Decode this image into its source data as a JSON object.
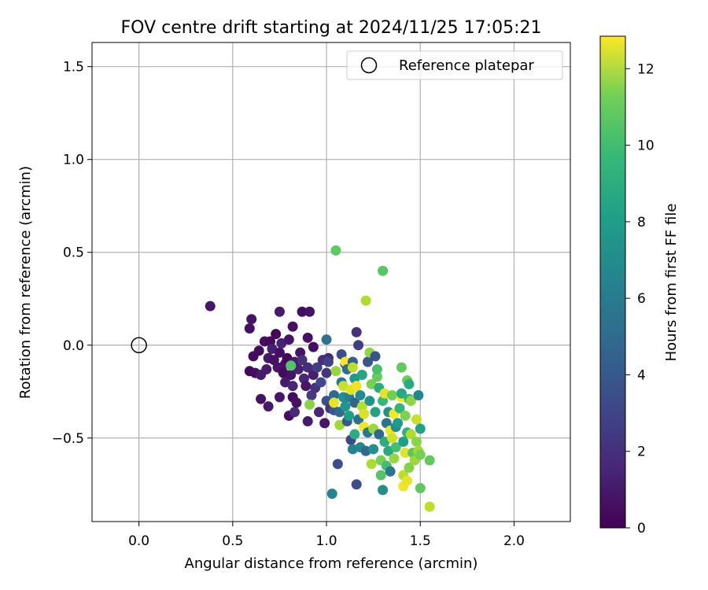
{
  "chart_data": {
    "type": "scatter",
    "title": "FOV centre drift starting at 2024/11/25 17:05:21",
    "xlabel": "Angular distance from reference (arcmin)",
    "ylabel": "Rotation from reference (arcmin)",
    "xlim": [
      -0.25,
      2.3
    ],
    "ylim": [
      -0.95,
      1.63
    ],
    "xticks": [
      0.0,
      0.5,
      1.0,
      1.5,
      2.0
    ],
    "xtick_labels": [
      "0.0",
      "0.5",
      "1.0",
      "1.5",
      "2.0"
    ],
    "yticks": [
      -0.5,
      0.0,
      0.5,
      1.0,
      1.5
    ],
    "ytick_labels": [
      "−0.5",
      "0.0",
      "0.5",
      "1.0",
      "1.5"
    ],
    "grid": true,
    "legend": {
      "position": "top-right",
      "entries": [
        {
          "label": "Reference platepar",
          "marker": "open-circle"
        }
      ]
    },
    "reference_point": {
      "x": 0.0,
      "y": 0.0
    },
    "colorbar": {
      "label": "Hours from first FF file",
      "range": [
        0,
        12.85
      ],
      "ticks": [
        0,
        2,
        4,
        6,
        8,
        10,
        12
      ],
      "tick_labels": [
        "0",
        "2",
        "4",
        "6",
        "8",
        "10",
        "12"
      ],
      "colormap": "viridis"
    },
    "points": [
      {
        "x": 0.38,
        "y": 0.21,
        "t": 0.8
      },
      {
        "x": 0.59,
        "y": 0.09,
        "t": 0.6
      },
      {
        "x": 0.6,
        "y": 0.14,
        "t": 0.7
      },
      {
        "x": 0.59,
        "y": -0.14,
        "t": 0.3
      },
      {
        "x": 0.61,
        "y": -0.06,
        "t": 0.4
      },
      {
        "x": 0.62,
        "y": -0.15,
        "t": 0.5
      },
      {
        "x": 0.64,
        "y": -0.03,
        "t": 0.4
      },
      {
        "x": 0.65,
        "y": -0.16,
        "t": 0.9
      },
      {
        "x": 0.65,
        "y": -0.29,
        "t": 0.6
      },
      {
        "x": 0.67,
        "y": 0.02,
        "t": 0.5
      },
      {
        "x": 0.68,
        "y": -0.13,
        "t": 1.0
      },
      {
        "x": 0.69,
        "y": -0.07,
        "t": 0.8
      },
      {
        "x": 0.69,
        "y": -0.33,
        "t": 0.9
      },
      {
        "x": 0.7,
        "y": 0.02,
        "t": 0.3
      },
      {
        "x": 0.71,
        "y": -0.02,
        "t": 1.1
      },
      {
        "x": 0.72,
        "y": -0.08,
        "t": 0.6
      },
      {
        "x": 0.73,
        "y": 0.06,
        "t": 0.2
      },
      {
        "x": 0.74,
        "y": -0.12,
        "t": 0.7
      },
      {
        "x": 0.75,
        "y": 0.18,
        "t": 0.9
      },
      {
        "x": 0.75,
        "y": -0.04,
        "t": 0.5
      },
      {
        "x": 0.75,
        "y": -0.28,
        "t": 0.8
      },
      {
        "x": 0.76,
        "y": 0.01,
        "t": 1.2
      },
      {
        "x": 0.77,
        "y": -0.15,
        "t": 0.4
      },
      {
        "x": 0.78,
        "y": -0.1,
        "t": 0.6
      },
      {
        "x": 0.78,
        "y": -0.2,
        "t": 1.0
      },
      {
        "x": 0.79,
        "y": -0.07,
        "t": 0.3
      },
      {
        "x": 0.8,
        "y": 0.03,
        "t": 0.8
      },
      {
        "x": 0.8,
        "y": -0.38,
        "t": 0.5
      },
      {
        "x": 0.81,
        "y": -0.16,
        "t": 0.7
      },
      {
        "x": 0.82,
        "y": 0.1,
        "t": 0.6
      },
      {
        "x": 0.82,
        "y": -0.22,
        "t": 1.3
      },
      {
        "x": 0.82,
        "y": -0.28,
        "t": 0.4
      },
      {
        "x": 0.83,
        "y": -0.36,
        "t": 1.5
      },
      {
        "x": 0.83,
        "y": -0.09,
        "t": 0.9
      },
      {
        "x": 0.84,
        "y": -0.31,
        "t": 0.6
      },
      {
        "x": 0.85,
        "y": -0.13,
        "t": 1.2
      },
      {
        "x": 0.86,
        "y": -0.04,
        "t": 0.7
      },
      {
        "x": 0.87,
        "y": 0.18,
        "t": 0.5
      },
      {
        "x": 0.87,
        "y": -0.08,
        "t": 1.8
      },
      {
        "x": 0.88,
        "y": -0.18,
        "t": 1.4
      },
      {
        "x": 0.89,
        "y": -0.22,
        "t": 0.8
      },
      {
        "x": 0.9,
        "y": 0.04,
        "t": 0.6
      },
      {
        "x": 0.9,
        "y": -0.12,
        "t": 1.6
      },
      {
        "x": 0.9,
        "y": -0.41,
        "t": 0.9
      },
      {
        "x": 0.91,
        "y": 0.18,
        "t": 0.7
      },
      {
        "x": 0.92,
        "y": -0.27,
        "t": 2.2
      },
      {
        "x": 0.93,
        "y": -0.01,
        "t": 0.5
      },
      {
        "x": 0.93,
        "y": -0.16,
        "t": 1.1
      },
      {
        "x": 0.94,
        "y": -0.23,
        "t": 1.9
      },
      {
        "x": 0.95,
        "y": -0.12,
        "t": 2.4
      },
      {
        "x": 0.96,
        "y": -0.36,
        "t": 1.4
      },
      {
        "x": 0.97,
        "y": -0.2,
        "t": 2.8
      },
      {
        "x": 0.98,
        "y": -0.08,
        "t": 1.7
      },
      {
        "x": 0.99,
        "y": -0.42,
        "t": 0.8
      },
      {
        "x": 1.0,
        "y": 0.03,
        "t": 4.8
      },
      {
        "x": 1.0,
        "y": -0.15,
        "t": 2.0
      },
      {
        "x": 1.0,
        "y": -0.3,
        "t": 3.2
      },
      {
        "x": 1.01,
        "y": -0.07,
        "t": 1.5
      },
      {
        "x": 1.01,
        "y": -0.09,
        "t": 2.6
      },
      {
        "x": 1.02,
        "y": -0.34,
        "t": 1.8
      },
      {
        "x": 0.81,
        "y": -0.11,
        "t": 9.3
      },
      {
        "x": 0.91,
        "y": -0.32,
        "t": 10.5
      },
      {
        "x": 1.03,
        "y": -0.8,
        "t": 5.8
      },
      {
        "x": 1.04,
        "y": -0.35,
        "t": 3.5
      },
      {
        "x": 1.04,
        "y": -0.27,
        "t": 4.3
      },
      {
        "x": 1.04,
        "y": -0.31,
        "t": 12.4
      },
      {
        "x": 1.05,
        "y": 0.51,
        "t": 9.6
      },
      {
        "x": 1.05,
        "y": -0.14,
        "t": 10.8
      },
      {
        "x": 1.06,
        "y": -0.64,
        "t": 3.0
      },
      {
        "x": 1.07,
        "y": -0.36,
        "t": 4.5
      },
      {
        "x": 1.07,
        "y": -0.43,
        "t": 11.0
      },
      {
        "x": 1.08,
        "y": -0.05,
        "t": 3.1
      },
      {
        "x": 1.08,
        "y": -0.2,
        "t": 5.1
      },
      {
        "x": 1.09,
        "y": -0.28,
        "t": 6.3
      },
      {
        "x": 1.09,
        "y": -0.22,
        "t": 11.8
      },
      {
        "x": 1.1,
        "y": -0.1,
        "t": 2.2
      },
      {
        "x": 1.1,
        "y": -0.33,
        "t": 6.7
      },
      {
        "x": 1.1,
        "y": -0.09,
        "t": 12.7
      },
      {
        "x": 1.11,
        "y": -0.41,
        "t": 3.6
      },
      {
        "x": 1.11,
        "y": -0.13,
        "t": 4.6
      },
      {
        "x": 1.12,
        "y": -0.28,
        "t": 5.5
      },
      {
        "x": 1.12,
        "y": -0.38,
        "t": 7.2
      },
      {
        "x": 1.13,
        "y": -0.51,
        "t": 2.8
      },
      {
        "x": 1.13,
        "y": -0.24,
        "t": 12.2
      },
      {
        "x": 1.14,
        "y": -0.09,
        "t": 3.9
      },
      {
        "x": 1.14,
        "y": -0.56,
        "t": 5.7
      },
      {
        "x": 1.14,
        "y": -0.12,
        "t": 11.6
      },
      {
        "x": 1.15,
        "y": -0.31,
        "t": 4.1
      },
      {
        "x": 1.15,
        "y": -0.18,
        "t": 6.9
      },
      {
        "x": 1.15,
        "y": -0.48,
        "t": 8.0
      },
      {
        "x": 1.16,
        "y": -0.75,
        "t": 3.0
      },
      {
        "x": 1.16,
        "y": 0.07,
        "t": 1.8
      },
      {
        "x": 1.16,
        "y": -0.22,
        "t": 12.5
      },
      {
        "x": 1.17,
        "y": 0.0,
        "t": 2.4
      },
      {
        "x": 1.17,
        "y": -0.4,
        "t": 4.8
      },
      {
        "x": 1.18,
        "y": -0.27,
        "t": 6.1
      },
      {
        "x": 1.18,
        "y": -0.55,
        "t": 5.9
      },
      {
        "x": 1.19,
        "y": -0.16,
        "t": 7.5
      },
      {
        "x": 1.19,
        "y": -0.33,
        "t": 11.4
      },
      {
        "x": 1.2,
        "y": -0.44,
        "t": 12.6
      },
      {
        "x": 1.2,
        "y": -0.37,
        "t": 12.1
      },
      {
        "x": 1.21,
        "y": -0.57,
        "t": 4.3
      },
      {
        "x": 1.21,
        "y": 0.24,
        "t": 11.3
      },
      {
        "x": 1.22,
        "y": -0.09,
        "t": 3.4
      },
      {
        "x": 1.22,
        "y": -0.47,
        "t": 5.2
      },
      {
        "x": 1.23,
        "y": -0.04,
        "t": 10.7
      },
      {
        "x": 1.23,
        "y": -0.3,
        "t": 6.6
      },
      {
        "x": 1.24,
        "y": -0.64,
        "t": 11.2
      },
      {
        "x": 1.24,
        "y": -0.21,
        "t": 10.2
      },
      {
        "x": 1.25,
        "y": -0.56,
        "t": 6.4
      },
      {
        "x": 1.25,
        "y": -0.45,
        "t": 10.9
      },
      {
        "x": 1.26,
        "y": -0.06,
        "t": 3.3
      },
      {
        "x": 1.26,
        "y": -0.36,
        "t": 7.4
      },
      {
        "x": 1.27,
        "y": -0.17,
        "t": 9.8
      },
      {
        "x": 1.27,
        "y": -0.13,
        "t": 9.1
      },
      {
        "x": 1.28,
        "y": -0.23,
        "t": 7.9
      },
      {
        "x": 1.28,
        "y": -0.48,
        "t": 4.4
      },
      {
        "x": 1.29,
        "y": -0.7,
        "t": 9.4
      },
      {
        "x": 1.29,
        "y": -0.62,
        "t": 10.1
      },
      {
        "x": 1.3,
        "y": 0.4,
        "t": 9.5
      },
      {
        "x": 1.3,
        "y": -0.3,
        "t": 8.6
      },
      {
        "x": 1.3,
        "y": -0.78,
        "t": 6.3
      },
      {
        "x": 1.31,
        "y": -0.52,
        "t": 8.0
      },
      {
        "x": 1.31,
        "y": -0.26,
        "t": 12.3
      },
      {
        "x": 1.32,
        "y": -0.42,
        "t": 4.9
      },
      {
        "x": 1.32,
        "y": -0.65,
        "t": 8.9
      },
      {
        "x": 1.33,
        "y": -0.57,
        "t": 7.7
      },
      {
        "x": 1.33,
        "y": -0.36,
        "t": 6.5
      },
      {
        "x": 1.34,
        "y": -0.68,
        "t": 5.0
      },
      {
        "x": 1.34,
        "y": -0.46,
        "t": 12.5
      },
      {
        "x": 1.35,
        "y": -0.27,
        "t": 10.0
      },
      {
        "x": 1.35,
        "y": -0.5,
        "t": 11.9
      },
      {
        "x": 1.36,
        "y": -0.61,
        "t": 10.8
      },
      {
        "x": 1.36,
        "y": -0.37,
        "t": 12.7
      },
      {
        "x": 1.37,
        "y": -0.44,
        "t": 6.1
      },
      {
        "x": 1.37,
        "y": -0.55,
        "t": 9.0
      },
      {
        "x": 1.38,
        "y": -0.42,
        "t": 7.0
      },
      {
        "x": 1.39,
        "y": -0.34,
        "t": 8.4
      },
      {
        "x": 1.4,
        "y": -0.12,
        "t": 9.7
      },
      {
        "x": 1.4,
        "y": -0.28,
        "t": 12.8
      },
      {
        "x": 1.4,
        "y": -0.26,
        "t": 7.7
      },
      {
        "x": 1.41,
        "y": -0.52,
        "t": 7.2
      },
      {
        "x": 1.41,
        "y": -0.7,
        "t": 11.5
      },
      {
        "x": 1.41,
        "y": -0.76,
        "t": 12.6
      },
      {
        "x": 1.42,
        "y": -0.38,
        "t": 10.3
      },
      {
        "x": 1.42,
        "y": -0.58,
        "t": 12.2
      },
      {
        "x": 1.43,
        "y": -0.19,
        "t": 9.9
      },
      {
        "x": 1.43,
        "y": -0.47,
        "t": 8.3
      },
      {
        "x": 1.43,
        "y": -0.73,
        "t": 12.4
      },
      {
        "x": 1.44,
        "y": -0.21,
        "t": 7.8
      },
      {
        "x": 1.44,
        "y": -0.29,
        "t": 8.2
      },
      {
        "x": 1.44,
        "y": -0.66,
        "t": 10.4
      },
      {
        "x": 1.45,
        "y": -0.3,
        "t": 10.6
      },
      {
        "x": 1.45,
        "y": -0.48,
        "t": 11.3
      },
      {
        "x": 1.46,
        "y": -0.58,
        "t": 9.5
      },
      {
        "x": 1.47,
        "y": -0.62,
        "t": 10.9
      },
      {
        "x": 1.48,
        "y": -0.4,
        "t": 11.8
      },
      {
        "x": 1.48,
        "y": -0.52,
        "t": 10.5
      },
      {
        "x": 1.49,
        "y": -0.27,
        "t": 5.9
      },
      {
        "x": 1.49,
        "y": -0.57,
        "t": 11.1
      },
      {
        "x": 1.5,
        "y": -0.45,
        "t": 7.3
      },
      {
        "x": 1.5,
        "y": -0.77,
        "t": 9.6
      },
      {
        "x": 1.5,
        "y": -0.59,
        "t": 10.1
      },
      {
        "x": 1.55,
        "y": -0.62,
        "t": 9.7
      },
      {
        "x": 1.55,
        "y": -0.87,
        "t": 11.6
      }
    ]
  }
}
